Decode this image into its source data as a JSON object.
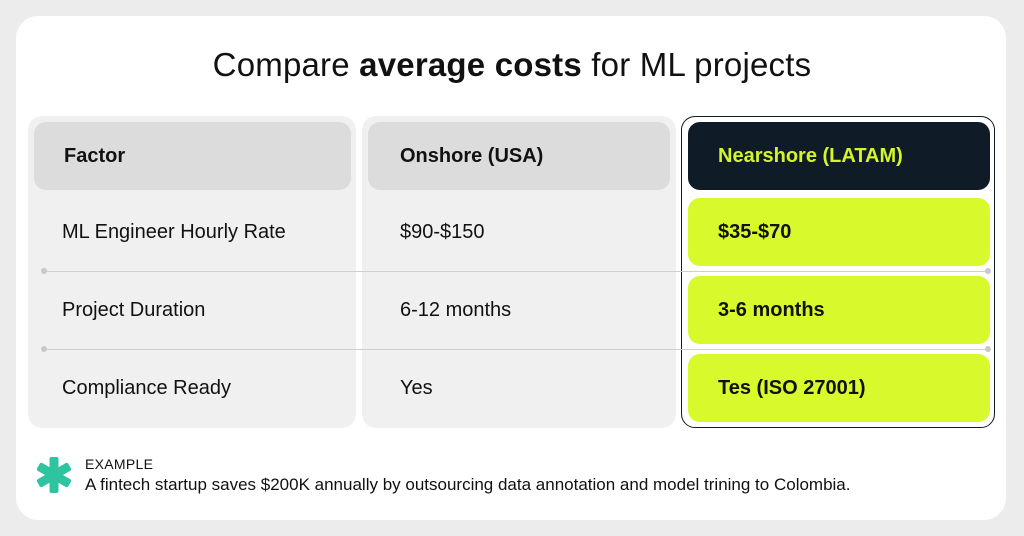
{
  "title": {
    "prefix": "Compare ",
    "bold": "average costs",
    "suffix": " for ML projects"
  },
  "table": {
    "headers": [
      "Factor",
      "Onshore (USA)",
      "Nearshore (LATAM)"
    ],
    "rows": [
      [
        "ML Engineer Hourly Rate",
        "$90-$150",
        "$35-$70"
      ],
      [
        "Project Duration",
        "6-12 months",
        "3-6 months"
      ],
      [
        "Compliance Ready",
        "Yes",
        "Tes (ISO 27001)"
      ]
    ]
  },
  "example": {
    "label": "EXAMPLE",
    "text": "A fintech startup saves $200K annually by outsourcing data annotation and model trining to Colombia.",
    "icon": "asterisk-icon"
  },
  "colors": {
    "accent_lime": "#d8fa2c",
    "dark_navy": "#0f1b27",
    "header_gray": "#dcdcdc",
    "panel_gray": "#f0f0f0",
    "icon_teal": "#2ec4a0"
  }
}
